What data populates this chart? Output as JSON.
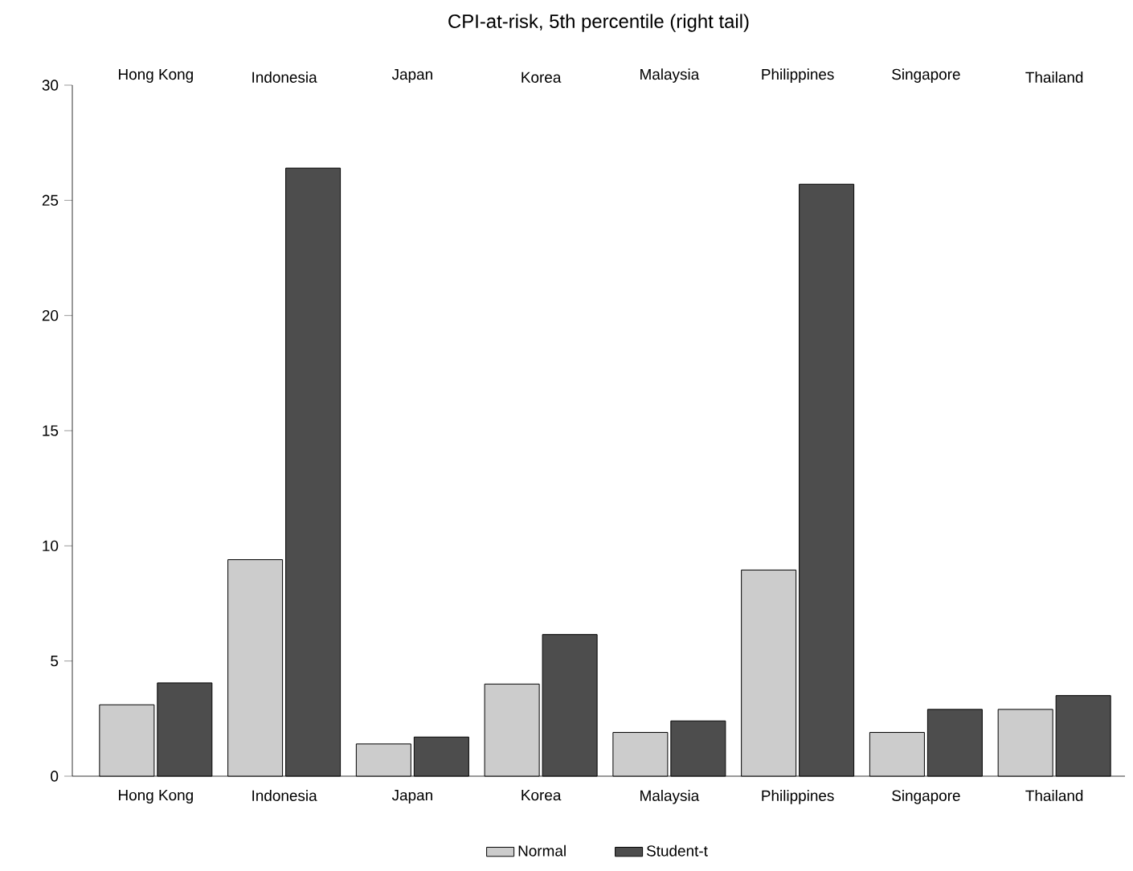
{
  "chart_data": {
    "type": "bar",
    "title": "CPI-at-risk, 5th percentile (right tail)",
    "categories": [
      "Hong Kong",
      "Indonesia",
      "Japan",
      "Korea",
      "Malaysia",
      "Philippines",
      "Singapore",
      "Thailand"
    ],
    "series": [
      {
        "name": "Normal",
        "color": "#cccccc",
        "values": [
          3.1,
          9.4,
          1.4,
          4.0,
          1.9,
          8.95,
          1.9,
          2.9
        ]
      },
      {
        "name": "Student-t",
        "color": "#4d4d4d",
        "values": [
          4.05,
          26.4,
          1.7,
          6.15,
          2.4,
          25.7,
          2.9,
          3.5
        ]
      }
    ],
    "ylim": [
      0,
      30
    ],
    "yticks": [
      0,
      5,
      10,
      15,
      20,
      25,
      30
    ],
    "grid": false,
    "legend": "bottom"
  }
}
